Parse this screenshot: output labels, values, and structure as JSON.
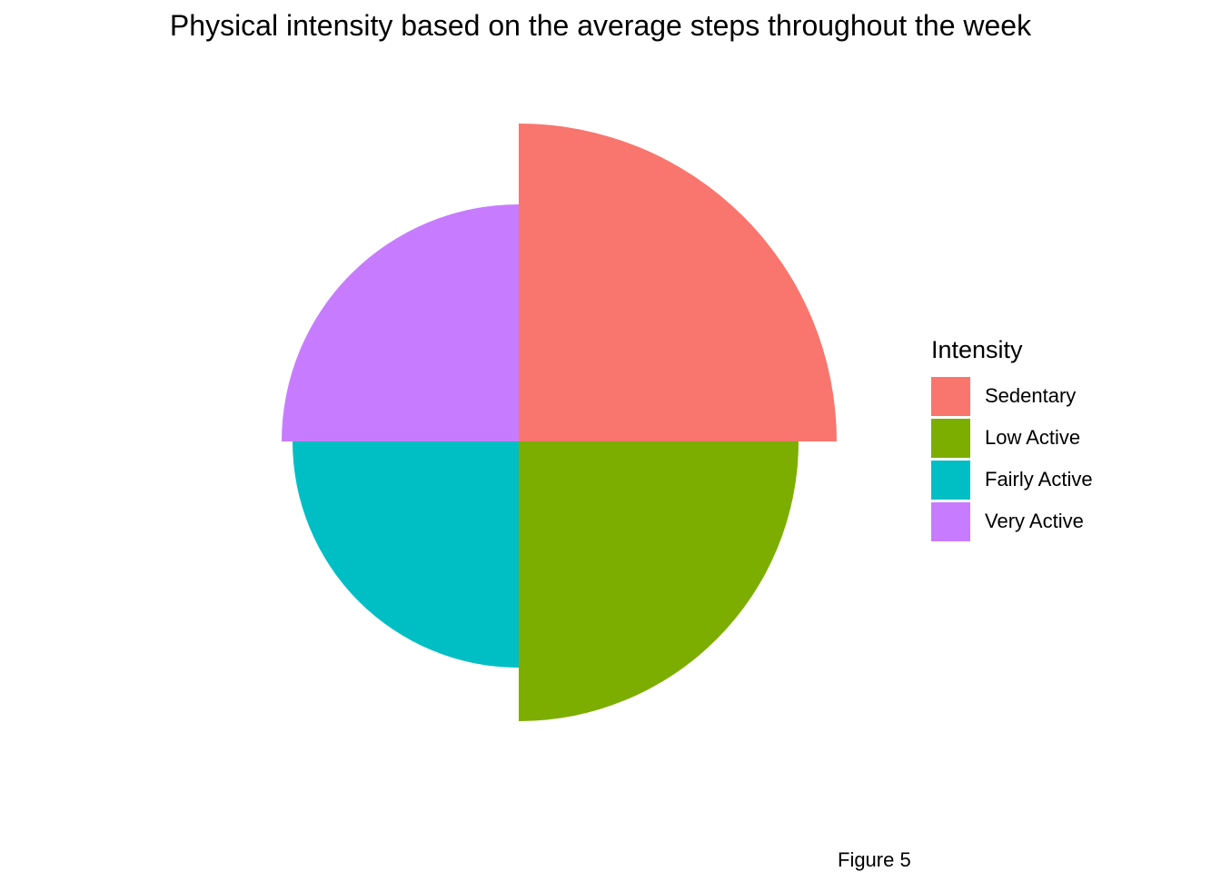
{
  "chart_data": {
    "type": "pie",
    "subtype": "coxcomb",
    "title": "Physical intensity based on the average steps throughout the week",
    "legend": {
      "title": "Intensity",
      "placement": "right"
    },
    "categories": [
      "Sedentary",
      "Low Active",
      "Fairly Active",
      "Very Active"
    ],
    "values": [
      350,
      308,
      249,
      261
    ],
    "colors": [
      "#F8766D",
      "#7CAE00",
      "#00BFC4",
      "#C77CFF"
    ],
    "grid": false,
    "caption": "Figure 5"
  }
}
